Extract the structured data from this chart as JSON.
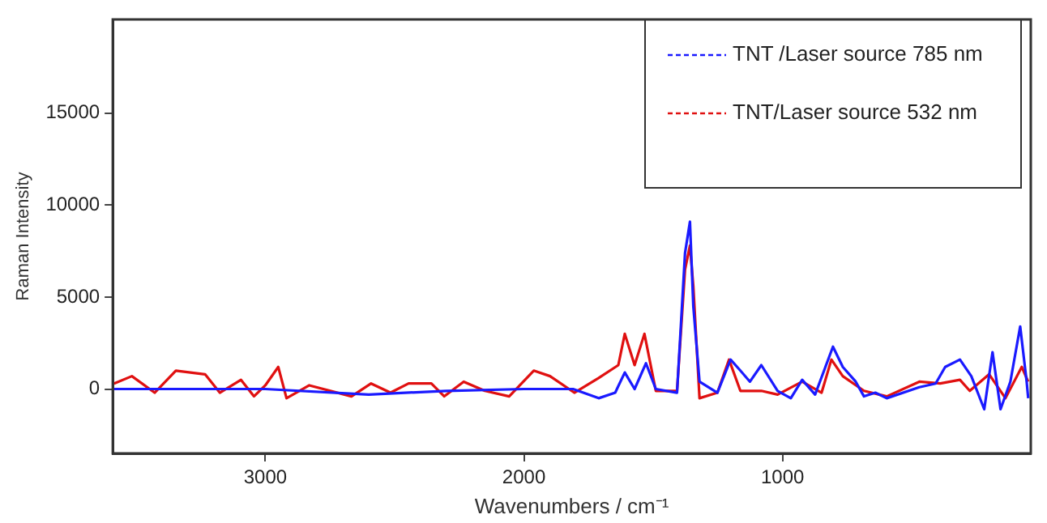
{
  "chart_data": {
    "type": "line",
    "xlabel": "Wavenumbers / cm⁻¹",
    "ylabel": "Raman Intensity",
    "xlim": [
      3590,
      40
    ],
    "ylim": [
      -3500,
      20100
    ],
    "xticks": [
      3000,
      2000,
      1000
    ],
    "yticks": [
      0,
      5000,
      10000,
      15000
    ],
    "grid": false,
    "legend": "top right",
    "marker": "none",
    "line_style": "solid",
    "series": [
      {
        "name": "TNT /Laser source 785 nm",
        "color": "#1a1aff",
        "x": [
          3585,
          3000,
          2600,
          2300,
          2000,
          1810,
          1711,
          1647,
          1610,
          1572,
          1528,
          1490,
          1408,
          1377,
          1358,
          1345,
          1321,
          1252,
          1201,
          1163,
          1126,
          1082,
          1019,
          968,
          924,
          874,
          805,
          767,
          717,
          685,
          641,
          597,
          471,
          408,
          371,
          314,
          270,
          220,
          188,
          157,
          119,
          81,
          56,
          50
        ],
        "values": [
          0,
          0,
          -300,
          -100,
          0,
          0,
          -500,
          -200,
          900,
          0,
          1400,
          0,
          -200,
          7400,
          9100,
          4500,
          400,
          -200,
          1600,
          1000,
          400,
          1300,
          -100,
          -500,
          500,
          -300,
          2300,
          1200,
          400,
          -400,
          -200,
          -500,
          100,
          300,
          1200,
          1600,
          700,
          -1100,
          2000,
          -1100,
          400,
          3400,
          400,
          -500
        ]
      },
      {
        "name": "TNT/Laser source 532 nm",
        "color": "#e01010",
        "x": [
          3585,
          3516,
          3428,
          3346,
          3233,
          3176,
          3094,
          3044,
          3000,
          2950,
          2918,
          2830,
          2667,
          2591,
          2516,
          2446,
          2358,
          2308,
          2233,
          2151,
          2057,
          1962,
          1899,
          1805,
          1711,
          1635,
          1610,
          1572,
          1534,
          1490,
          1408,
          1377,
          1358,
          1345,
          1321,
          1252,
          1207,
          1163,
          1082,
          1019,
          924,
          849,
          811,
          767,
          685,
          597,
          471,
          390,
          314,
          276,
          201,
          138,
          75,
          50
        ],
        "values": [
          300,
          700,
          -200,
          1000,
          800,
          -200,
          500,
          -400,
          200,
          1200,
          -500,
          200,
          -400,
          300,
          -200,
          300,
          300,
          -400,
          400,
          -100,
          -400,
          1000,
          700,
          -200,
          600,
          1300,
          3000,
          1300,
          3000,
          -100,
          -100,
          6500,
          7800,
          5600,
          -500,
          -200,
          1600,
          -100,
          -100,
          -300,
          400,
          -200,
          1600,
          700,
          -100,
          -400,
          400,
          300,
          500,
          -100,
          800,
          -500,
          1200,
          400
        ]
      }
    ]
  }
}
